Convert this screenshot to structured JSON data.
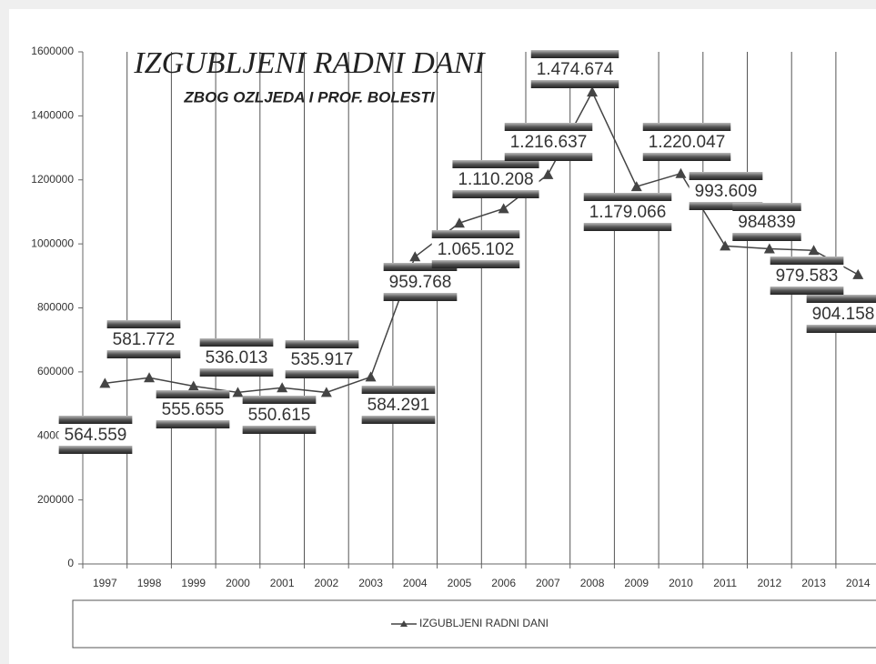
{
  "chart_data": {
    "type": "line",
    "title": "IZGUBLJENI RADNI DANI",
    "subtitle": "ZBOG OZLJEDA I PROF. BOLESTI",
    "categories": [
      "1997",
      "1998",
      "1999",
      "2000",
      "2001",
      "2002",
      "2003",
      "2004",
      "2005",
      "2006",
      "2007",
      "2008",
      "2009",
      "2010",
      "2011",
      "2012",
      "2013",
      "2014"
    ],
    "series": [
      {
        "name": "IZGUBLJENI RADNI DANI",
        "color": "#444444",
        "values": [
          564559,
          581772,
          555655,
          536013,
          550615,
          535917,
          584291,
          959768,
          1065102,
          1110208,
          1216637,
          1474674,
          1179066,
          1220047,
          993609,
          984839,
          979583,
          904158
        ],
        "value_labels": [
          "564.559",
          "581.772",
          "555.655",
          "536.013",
          "550.615",
          "535.917",
          "584.291",
          "959.768",
          "1.065.102",
          "1.110.208",
          "1.216.637",
          "1.474.674",
          "1.179.066",
          "1.220.047",
          "993.609",
          "984839",
          "979.583",
          "904.158"
        ]
      }
    ],
    "ylim": [
      0,
      1600000
    ],
    "yticks": [
      0,
      200000,
      400000,
      600000,
      800000,
      1000000,
      1200000,
      1400000,
      1600000
    ],
    "grid": true,
    "legend": "bottom"
  }
}
